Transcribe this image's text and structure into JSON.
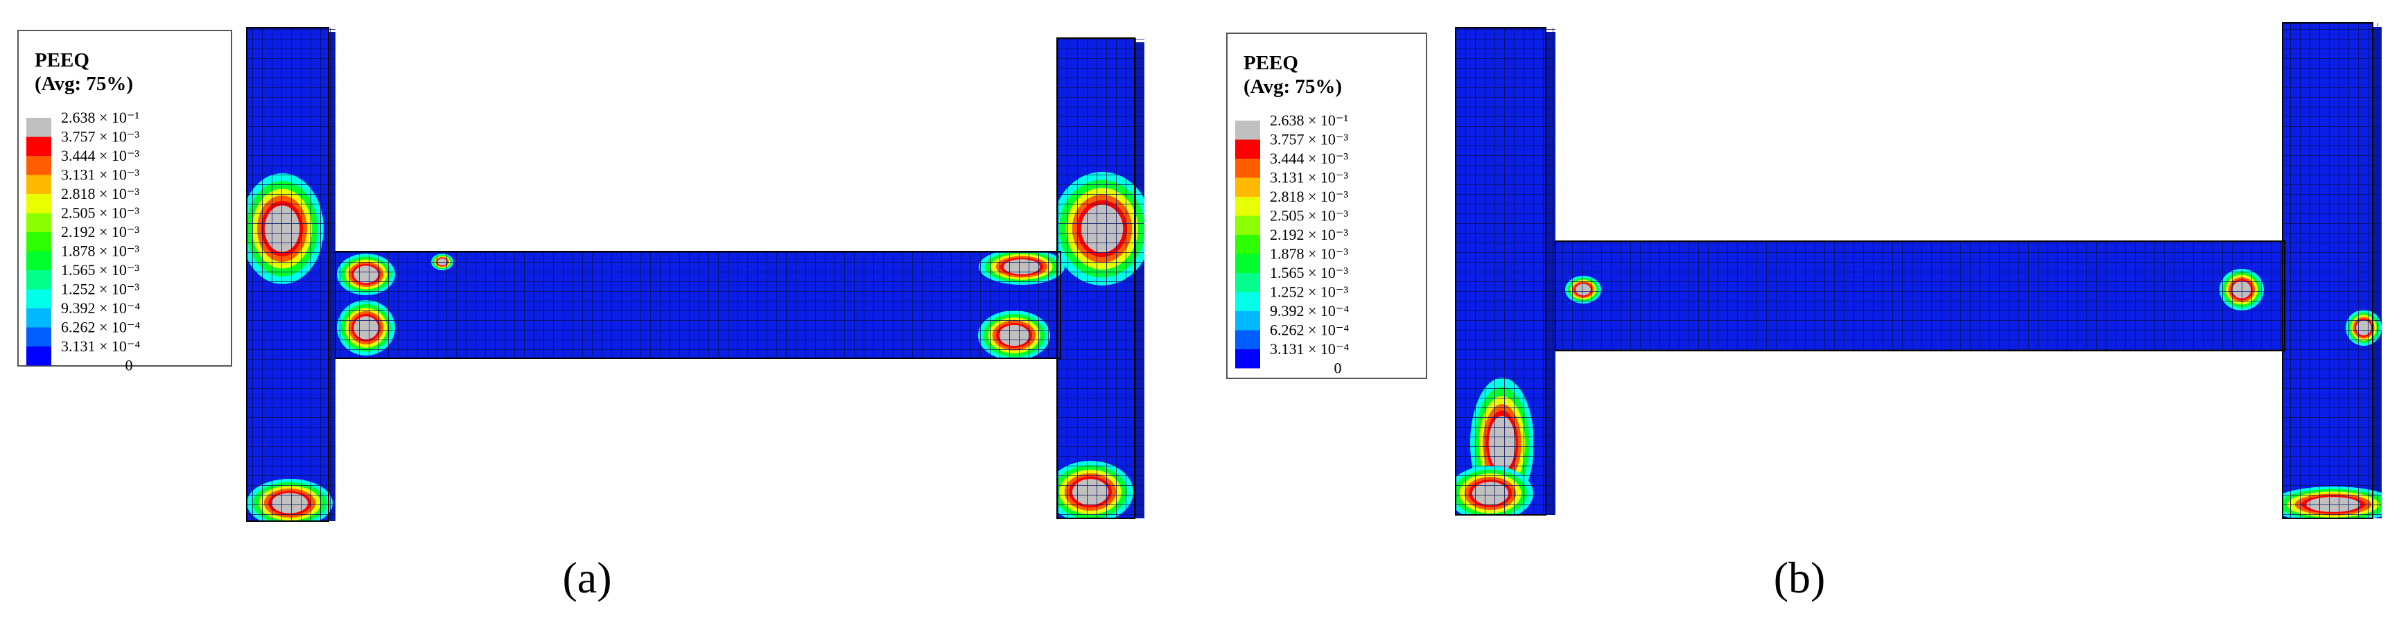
{
  "panels": [
    {
      "legend": {
        "title": "PEEQ",
        "subtitle": "(Avg: 75%)",
        "labels": [
          "2.638 × 10⁻¹",
          "3.757 × 10⁻³",
          "3.444 × 10⁻³",
          "3.131 × 10⁻³",
          "2.818 × 10⁻³",
          "2.505 × 10⁻³",
          "2.192 × 10⁻³",
          "1.878 × 10⁻³",
          "1.565 × 10⁻³",
          "1.252 × 10⁻³",
          "9.392 × 10⁻⁴",
          "6.262 × 10⁻⁴",
          "3.131 × 10⁻⁴",
          "0"
        ],
        "colors": [
          "#c0c0c0",
          "#ff0000",
          "#ff5d00",
          "#ffb900",
          "#e8ff00",
          "#8bff00",
          "#2eff00",
          "#00ff2e",
          "#00ff8b",
          "#00ffe8",
          "#00b9ff",
          "#005dff",
          "#0000ff"
        ]
      },
      "caption": "(a)"
    },
    {
      "legend": {
        "title": "PEEQ",
        "subtitle": "(Avg: 75%)",
        "labels": [
          "2.638 × 10⁻¹",
          "3.757 × 10⁻³",
          "3.444 × 10⁻³",
          "3.131 × 10⁻³",
          "2.818 × 10⁻³",
          "2.505 × 10⁻³",
          "2.192 × 10⁻³",
          "1.878 × 10⁻³",
          "1.565 × 10⁻³",
          "1.252 × 10⁻³",
          "9.392 × 10⁻⁴",
          "6.262 × 10⁻⁴",
          "3.131 × 10⁻⁴",
          "0"
        ],
        "colors": [
          "#c0c0c0",
          "#ff0000",
          "#ff5d00",
          "#ffb900",
          "#e8ff00",
          "#8bff00",
          "#2eff00",
          "#00ff2e",
          "#00ff8b",
          "#00ffe8",
          "#00b9ff",
          "#005dff",
          "#0000ff"
        ]
      },
      "caption": "(b)"
    }
  ]
}
